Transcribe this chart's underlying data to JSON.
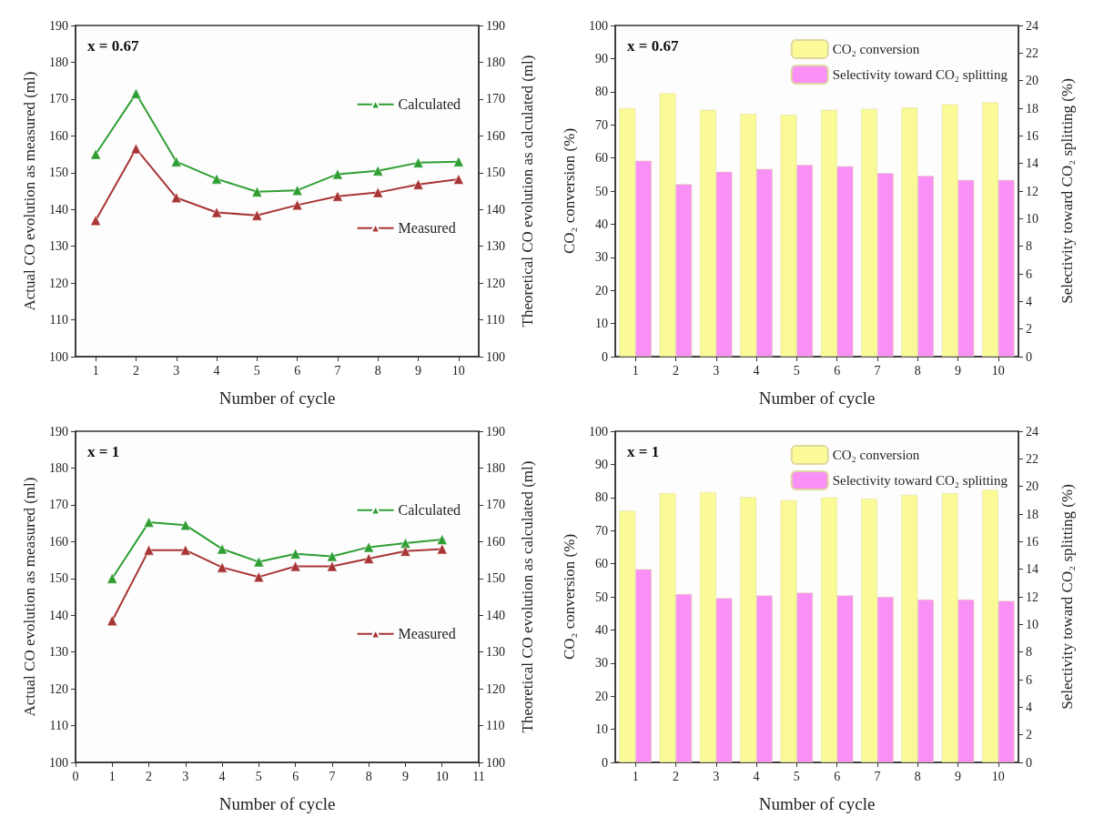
{
  "chart_data": [
    {
      "type": "line",
      "annotations": [
        "x = 0.67"
      ],
      "xlabel": "Number of cycle",
      "ylabel": "Actual CO evolution as measured (ml)",
      "y2label": "Theoretical CO evolution as calculated (ml)",
      "x": [
        1,
        2,
        3,
        4,
        5,
        6,
        7,
        8,
        9,
        10
      ],
      "xlim": [
        0.5,
        10.5
      ],
      "xticks": [
        1,
        2,
        3,
        4,
        5,
        6,
        7,
        8,
        9,
        10
      ],
      "ylim": [
        100,
        190
      ],
      "yticks": [
        100,
        110,
        120,
        130,
        140,
        150,
        160,
        170,
        180,
        190
      ],
      "y2lim": [
        100,
        190
      ],
      "y2ticks": [
        100,
        110,
        120,
        130,
        140,
        150,
        160,
        170,
        180,
        190
      ],
      "grid": false,
      "legend": "right",
      "marker": "triangle",
      "line_style": "solid",
      "series": [
        {
          "name": "Calculated",
          "color": "#2f9e33",
          "axis": "y2",
          "values": [
            155,
            171.5,
            153,
            148.3,
            144.8,
            145.2,
            149.6,
            150.5,
            152.7,
            153
          ]
        },
        {
          "name": "Measured",
          "color": "#a83535",
          "values": [
            137,
            156.5,
            143.2,
            139.2,
            138.4,
            141.2,
            143.6,
            144.6,
            146.8,
            148.2
          ]
        }
      ]
    },
    {
      "type": "bar",
      "annotations": [
        "x = 0.67"
      ],
      "xlabel": "Number of cycle",
      "ylabel": "CO₂ conversion (%)",
      "y2label": "Selectivity toward CO₂ splitting (%)",
      "categories": [
        "1",
        "2",
        "3",
        "4",
        "5",
        "6",
        "7",
        "8",
        "9",
        "10"
      ],
      "ylim": [
        0,
        100
      ],
      "yticks": [
        0,
        10,
        20,
        30,
        40,
        50,
        60,
        70,
        80,
        90,
        100
      ],
      "y2lim": [
        0,
        24
      ],
      "y2ticks": [
        0,
        2,
        4,
        6,
        8,
        10,
        12,
        14,
        16,
        18,
        20,
        22,
        24
      ],
      "grid": false,
      "legend": "top right",
      "series": [
        {
          "name": "CO₂ conversion",
          "color": "#fafa96",
          "values": [
            75,
            79.5,
            74.5,
            73.3,
            73,
            74.5,
            74.8,
            75.2,
            76.2,
            76.8
          ]
        },
        {
          "name": "Selectivity toward CO₂ splitting",
          "color": "#f990f5",
          "axis": "y2",
          "values": [
            14.2,
            12.5,
            13.4,
            13.6,
            13.9,
            13.8,
            13.3,
            13.1,
            12.8,
            12.8
          ]
        }
      ]
    },
    {
      "type": "line",
      "annotations": [
        "x = 1"
      ],
      "xlabel": "Number of cycle",
      "ylabel": "Actual CO evolution as measured (ml)",
      "y2label": "Theoretical CO evolution as calculated (ml)",
      "x": [
        1,
        2,
        3,
        4,
        5,
        6,
        7,
        8,
        9,
        10
      ],
      "xlim": [
        0,
        11
      ],
      "xticks": [
        0,
        1,
        2,
        3,
        4,
        5,
        6,
        7,
        8,
        9,
        10,
        11
      ],
      "ylim": [
        100,
        190
      ],
      "yticks": [
        100,
        110,
        120,
        130,
        140,
        150,
        160,
        170,
        180,
        190
      ],
      "y2lim": [
        100,
        190
      ],
      "y2ticks": [
        100,
        110,
        120,
        130,
        140,
        150,
        160,
        170,
        180,
        190
      ],
      "grid": false,
      "legend": "right",
      "marker": "triangle",
      "line_style": "solid",
      "series": [
        {
          "name": "Calculated",
          "color": "#2f9e33",
          "axis": "y2",
          "values": [
            150,
            165.3,
            164.5,
            158,
            154.5,
            156.7,
            156,
            158.5,
            159.6,
            160.6
          ]
        },
        {
          "name": "Measured",
          "color": "#a83535",
          "values": [
            138.5,
            157.7,
            157.7,
            153,
            150.4,
            153.3,
            153.3,
            155.4,
            157.4,
            158
          ]
        }
      ]
    },
    {
      "type": "bar",
      "annotations": [
        "x = 1"
      ],
      "xlabel": "Number of cycle",
      "ylabel": "CO₂ conversion (%)",
      "y2label": "Selectivity toward CO₂ splitting (%)",
      "categories": [
        "1",
        "2",
        "3",
        "4",
        "5",
        "6",
        "7",
        "8",
        "9",
        "10"
      ],
      "ylim": [
        0,
        100
      ],
      "yticks": [
        0,
        10,
        20,
        30,
        40,
        50,
        60,
        70,
        80,
        90,
        100
      ],
      "y2lim": [
        0,
        24
      ],
      "y2ticks": [
        0,
        2,
        4,
        6,
        8,
        10,
        12,
        14,
        16,
        18,
        20,
        22,
        24
      ],
      "grid": false,
      "legend": "top right",
      "series": [
        {
          "name": "CO₂ conversion",
          "color": "#fafa96",
          "values": [
            76,
            81.3,
            81.6,
            80.1,
            79.2,
            80,
            79.6,
            80.8,
            81.3,
            82.3
          ]
        },
        {
          "name": "Selectivity toward CO₂ splitting",
          "color": "#f990f5",
          "axis": "y2",
          "values": [
            14,
            12.2,
            11.9,
            12.1,
            12.3,
            12.1,
            12,
            11.8,
            11.8,
            11.7
          ]
        }
      ]
    }
  ]
}
